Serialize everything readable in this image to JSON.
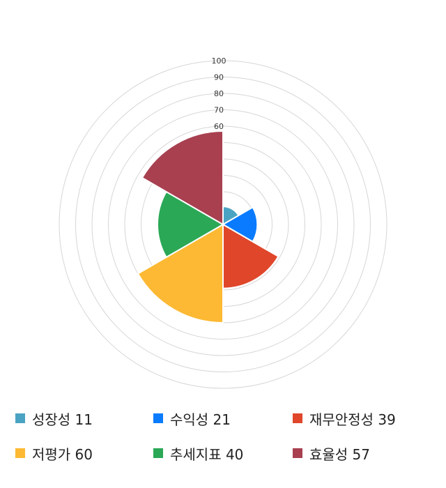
{
  "chart_data": {
    "type": "polar-area",
    "rmax": 100,
    "ticks": [
      10,
      20,
      30,
      40,
      50,
      60,
      70,
      80,
      90,
      100
    ],
    "tick_labels": [
      "",
      "",
      "",
      "",
      "",
      "60",
      "70",
      "80",
      "90",
      "100"
    ],
    "series": [
      {
        "name": "성장성",
        "value": 11,
        "color": "#4BA3C3",
        "legend": "성장성 11"
      },
      {
        "name": "수익성",
        "value": 21,
        "color": "#0A7BFF",
        "legend": "수익성 21"
      },
      {
        "name": "재무안정성",
        "value": 39,
        "color": "#E0462A",
        "legend": "재무안정성 39"
      },
      {
        "name": "저평가",
        "value": 60,
        "color": "#FDB933",
        "legend": "저평가 60"
      },
      {
        "name": "추세지표",
        "value": 40,
        "color": "#2AA856",
        "legend": "추세지표 40"
      },
      {
        "name": "효율성",
        "value": 57,
        "color": "#A84050",
        "legend": "효율성 57"
      }
    ],
    "grid": true,
    "legend_position": "bottom"
  }
}
